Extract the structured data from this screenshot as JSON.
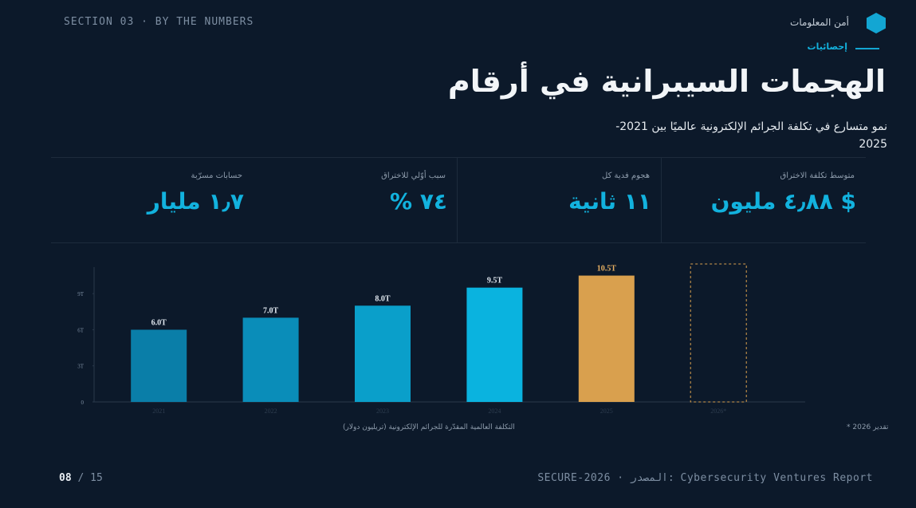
{
  "header": {
    "section": "SECTION 03 · BY THE NUMBERS",
    "brand": "أمن المعلومات",
    "eyebrow": "إحصائيات",
    "title": "الهجمات السيبرانية في أرقام",
    "subtitle": "نمو متسارع في تكلفة الجرائم الإلكترونية عالميًا بين 2021-2025"
  },
  "stats": [
    {
      "label": "متوسط تكلفة الاختراق",
      "value": "$ ٤٫٨٨ مليون"
    },
    {
      "label": "هجوم فدية كل",
      "value": "١١ ثانية"
    },
    {
      "label": "سبب أوّلي للاختراق",
      "value": "٧٤ %"
    },
    {
      "label": "حسابات مسرّبة",
      "value": "١٫٧ مليار"
    }
  ],
  "chart_data": {
    "type": "bar",
    "categories": [
      "2021",
      "2022",
      "2023",
      "2024",
      "2025",
      "2026*"
    ],
    "values": [
      6.0,
      7.0,
      8.0,
      9.5,
      10.5,
      null
    ],
    "value_labels": [
      "6.0T",
      "7.0T",
      "8.0T",
      "9.5T",
      "10.5T",
      null
    ],
    "colors": [
      "#0a7ea8",
      "#0a8db9",
      "#0a9fca",
      "#0ab3df",
      "#d9a04e",
      "#d9a04e"
    ],
    "ylim": [
      0,
      11.2
    ],
    "yticks": [
      0,
      {
        "value": 3,
        "label": "3T"
      },
      {
        "value": 6,
        "label": "6T"
      },
      {
        "value": 9,
        "label": "9T"
      }
    ],
    "x_label": "التكلفة العالمية المقدّرة للجرائم الإلكترونية (تريليون دولار)",
    "note": "تقدير 2026 *"
  },
  "footer": {
    "page": "08",
    "total": "15",
    "source": "SECURE-2026 · المصدر: Cybersecurity Ventures Report"
  }
}
